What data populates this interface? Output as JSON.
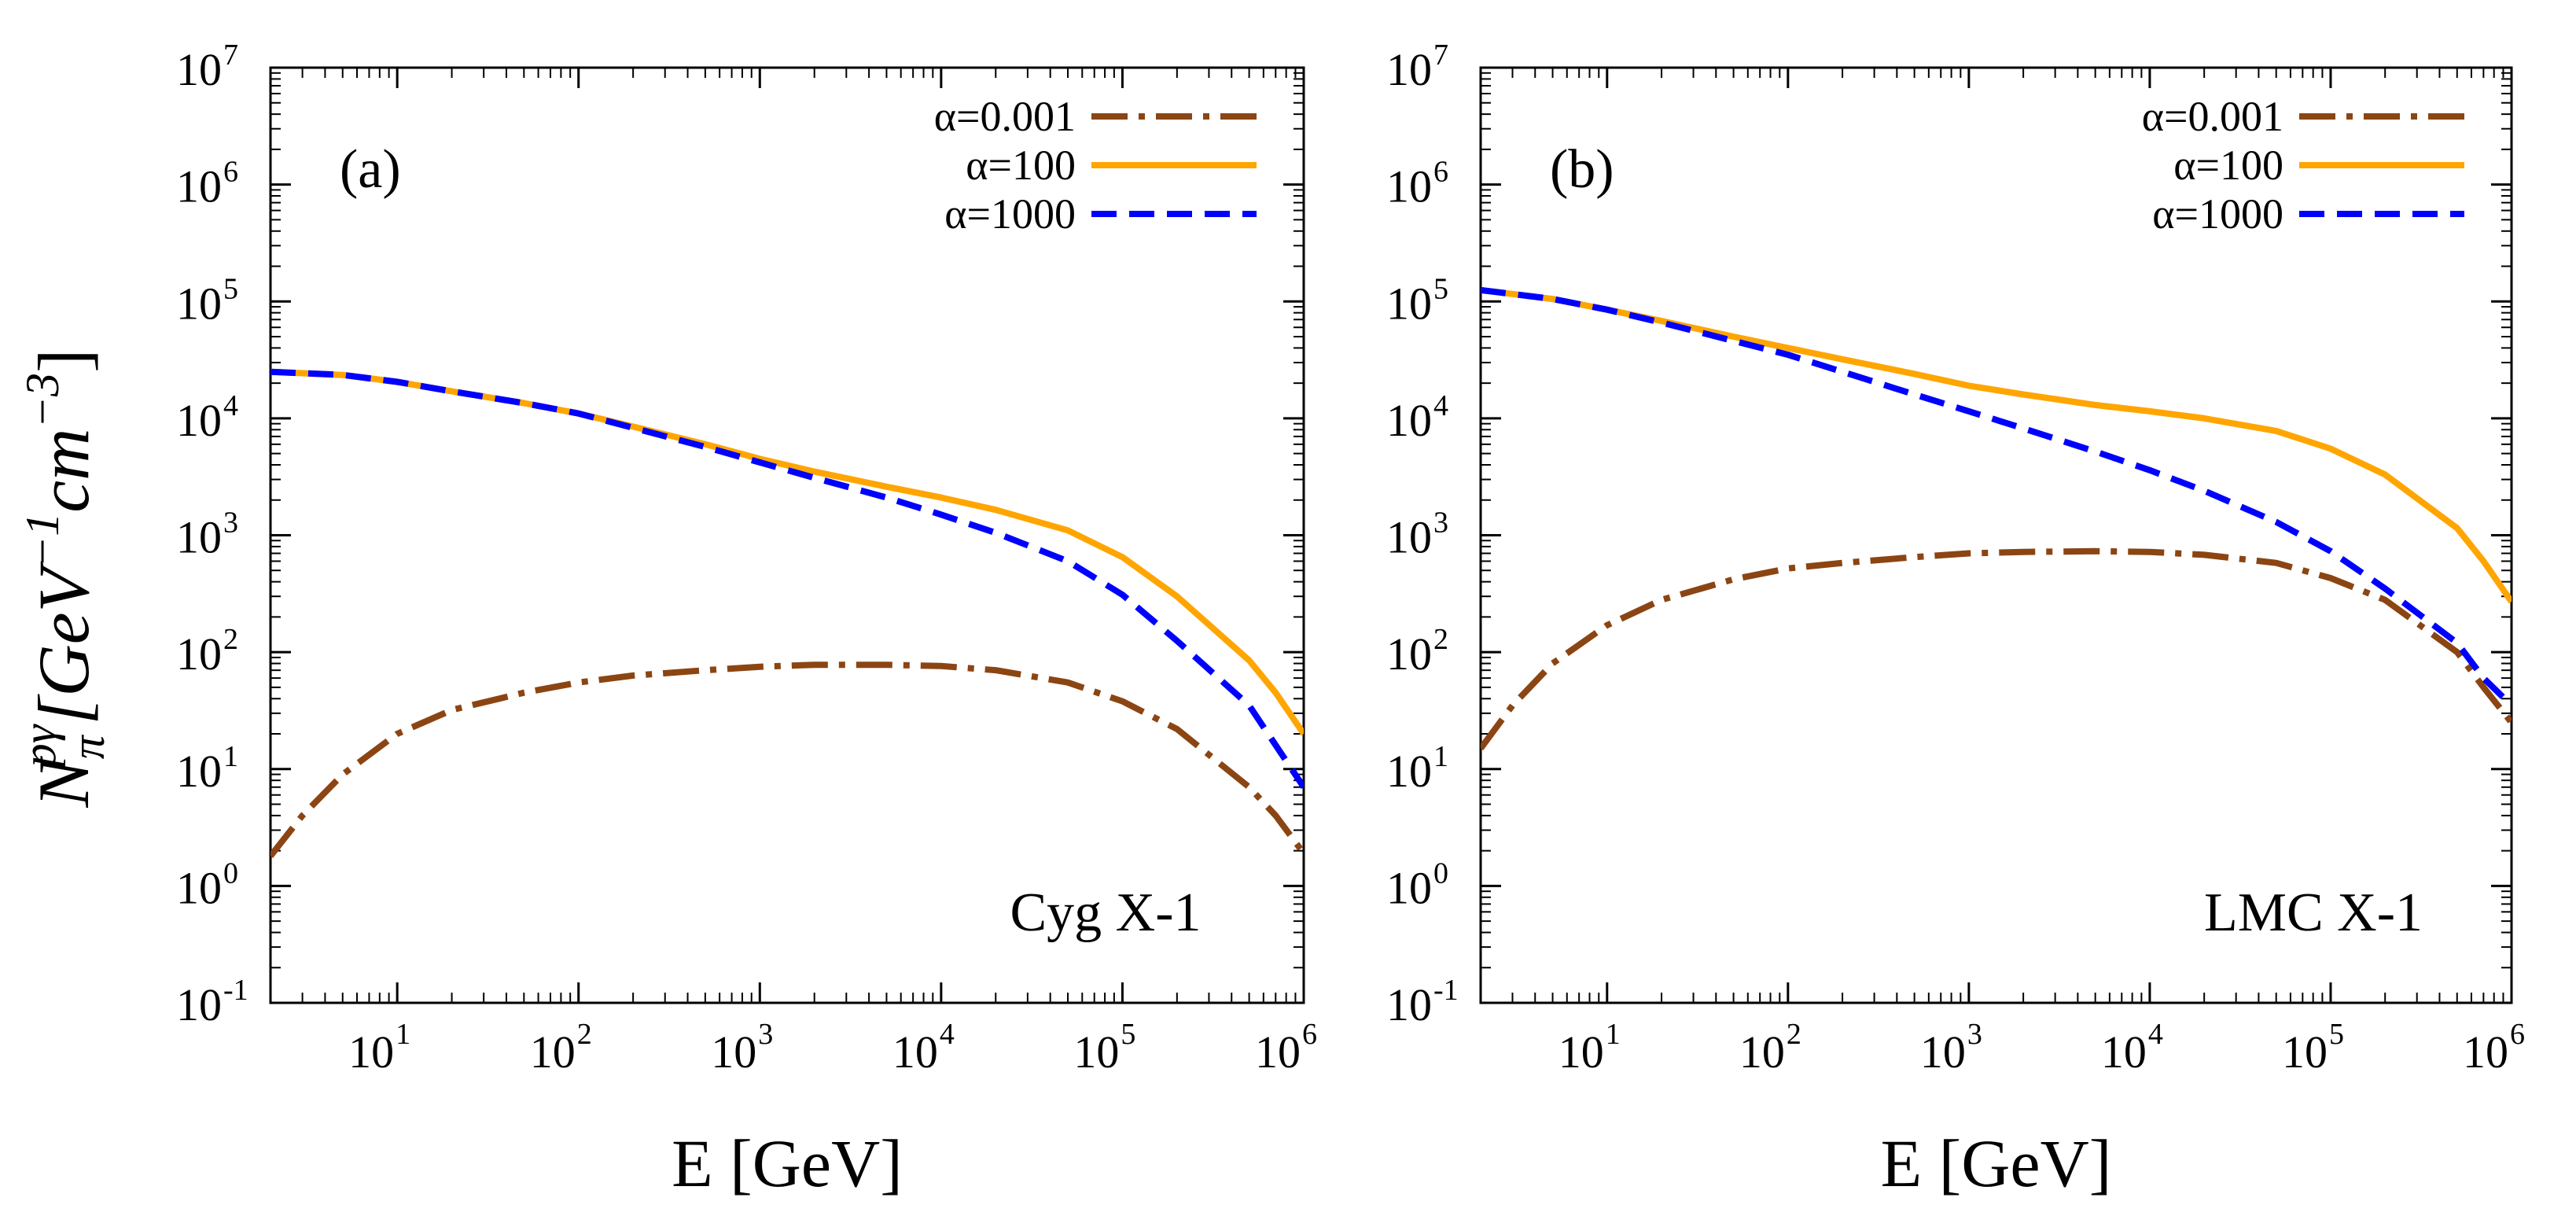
{
  "figure": {
    "ylabel": {
      "N": "N",
      "sub": "π",
      "sup": "pγ",
      "unit_open": "[GeV",
      "exp1": "−1",
      "cm": "cm",
      "exp2": "−3",
      "unit_close": "]"
    }
  },
  "colors": {
    "alpha_0_001": "#8b4513",
    "alpha_100": "#ffa500",
    "alpha_1000": "#0000ff"
  },
  "chart_data": [
    {
      "type": "line",
      "panel": "(a)",
      "source": "Cyg X-1",
      "xlabel": "E [GeV]",
      "xscale": "log",
      "yscale": "log",
      "xlim": [
        2,
        1000000
      ],
      "ylim": [
        0.1,
        10000000
      ],
      "x_ticks": [
        {
          "base": "10",
          "exp": "1"
        },
        {
          "base": "10",
          "exp": "2"
        },
        {
          "base": "10",
          "exp": "3"
        },
        {
          "base": "10",
          "exp": "4"
        },
        {
          "base": "10",
          "exp": "5"
        },
        {
          "base": "10",
          "exp": "6"
        }
      ],
      "y_ticks": [
        {
          "base": "10",
          "exp": "-1"
        },
        {
          "base": "10",
          "exp": "0"
        },
        {
          "base": "10",
          "exp": "1"
        },
        {
          "base": "10",
          "exp": "2"
        },
        {
          "base": "10",
          "exp": "3"
        },
        {
          "base": "10",
          "exp": "4"
        },
        {
          "base": "10",
          "exp": "5"
        },
        {
          "base": "10",
          "exp": "6"
        },
        {
          "base": "10",
          "exp": "7"
        }
      ],
      "legend_position": "top-right",
      "series": [
        {
          "name": "α=0.001",
          "style": "dash-dot",
          "color": "#8b4513",
          "x": [
            2,
            3,
            5,
            10,
            20,
            50,
            100,
            200,
            500,
            1000,
            2000,
            5000,
            10000,
            20000,
            50000,
            100000,
            200000,
            500000,
            700000,
            1000000
          ],
          "y": [
            1.8,
            4,
            9,
            20,
            32,
            45,
            55,
            63,
            70,
            75,
            78,
            78,
            76,
            70,
            55,
            38,
            22,
            7,
            4,
            1.9
          ]
        },
        {
          "name": "α=100",
          "style": "solid",
          "color": "#ffa500",
          "x": [
            2,
            5,
            10,
            20,
            50,
            100,
            200,
            500,
            1000,
            2000,
            5000,
            10000,
            20000,
            50000,
            100000,
            200000,
            500000,
            700000,
            1000000
          ],
          "y": [
            25000,
            23500,
            20500,
            17000,
            13500,
            11000,
            8500,
            6000,
            4500,
            3500,
            2600,
            2100,
            1650,
            1100,
            650,
            300,
            85,
            45,
            20
          ]
        },
        {
          "name": "α=1000",
          "style": "dashed",
          "color": "#0000ff",
          "x": [
            2,
            5,
            10,
            20,
            50,
            100,
            200,
            500,
            1000,
            2000,
            5000,
            10000,
            20000,
            50000,
            100000,
            200000,
            500000,
            700000,
            1000000
          ],
          "y": [
            25000,
            23500,
            20500,
            17000,
            13500,
            11000,
            8300,
            5700,
            4200,
            3100,
            2100,
            1500,
            1050,
            600,
            310,
            125,
            35,
            16,
            7
          ]
        }
      ]
    },
    {
      "type": "line",
      "panel": "(b)",
      "source": "LMC X-1",
      "xlabel": "E [GeV]",
      "xscale": "log",
      "yscale": "log",
      "xlim": [
        2,
        1000000
      ],
      "ylim": [
        0.1,
        10000000
      ],
      "x_ticks": [
        {
          "base": "10",
          "exp": "1"
        },
        {
          "base": "10",
          "exp": "2"
        },
        {
          "base": "10",
          "exp": "3"
        },
        {
          "base": "10",
          "exp": "4"
        },
        {
          "base": "10",
          "exp": "5"
        },
        {
          "base": "10",
          "exp": "6"
        }
      ],
      "y_ticks": [
        {
          "base": "10",
          "exp": "-1"
        },
        {
          "base": "10",
          "exp": "0"
        },
        {
          "base": "10",
          "exp": "1"
        },
        {
          "base": "10",
          "exp": "2"
        },
        {
          "base": "10",
          "exp": "3"
        },
        {
          "base": "10",
          "exp": "4"
        },
        {
          "base": "10",
          "exp": "5"
        },
        {
          "base": "10",
          "exp": "6"
        },
        {
          "base": "10",
          "exp": "7"
        }
      ],
      "legend_position": "top-right",
      "series": [
        {
          "name": "α=0.001",
          "style": "dash-dot",
          "color": "#8b4513",
          "x": [
            2,
            3,
            5,
            10,
            20,
            50,
            100,
            200,
            500,
            1000,
            2000,
            5000,
            10000,
            20000,
            50000,
            100000,
            200000,
            500000,
            700000,
            1000000
          ],
          "y": [
            15,
            35,
            80,
            170,
            280,
            420,
            520,
            580,
            650,
            700,
            720,
            730,
            720,
            680,
            580,
            430,
            280,
            100,
            50,
            25
          ]
        },
        {
          "name": "α=100",
          "style": "solid",
          "color": "#ffa500",
          "x": [
            2,
            5,
            10,
            20,
            50,
            100,
            200,
            500,
            1000,
            2000,
            5000,
            10000,
            20000,
            50000,
            100000,
            200000,
            500000,
            700000,
            1000000
          ],
          "y": [
            125000,
            105000,
            85000,
            68000,
            50000,
            40000,
            32000,
            24000,
            19000,
            16000,
            13000,
            11500,
            10000,
            7800,
            5500,
            3300,
            1150,
            600,
            270
          ]
        },
        {
          "name": "α=1000",
          "style": "dashed",
          "color": "#0000ff",
          "x": [
            2,
            5,
            10,
            20,
            50,
            100,
            200,
            500,
            1000,
            2000,
            5000,
            10000,
            20000,
            50000,
            100000,
            200000,
            500000,
            700000,
            1000000
          ],
          "y": [
            125000,
            105000,
            85000,
            66000,
            46000,
            35000,
            25000,
            16000,
            11500,
            8200,
            5200,
            3600,
            2400,
            1300,
            730,
            350,
            120,
            60,
            35
          ]
        }
      ]
    }
  ]
}
